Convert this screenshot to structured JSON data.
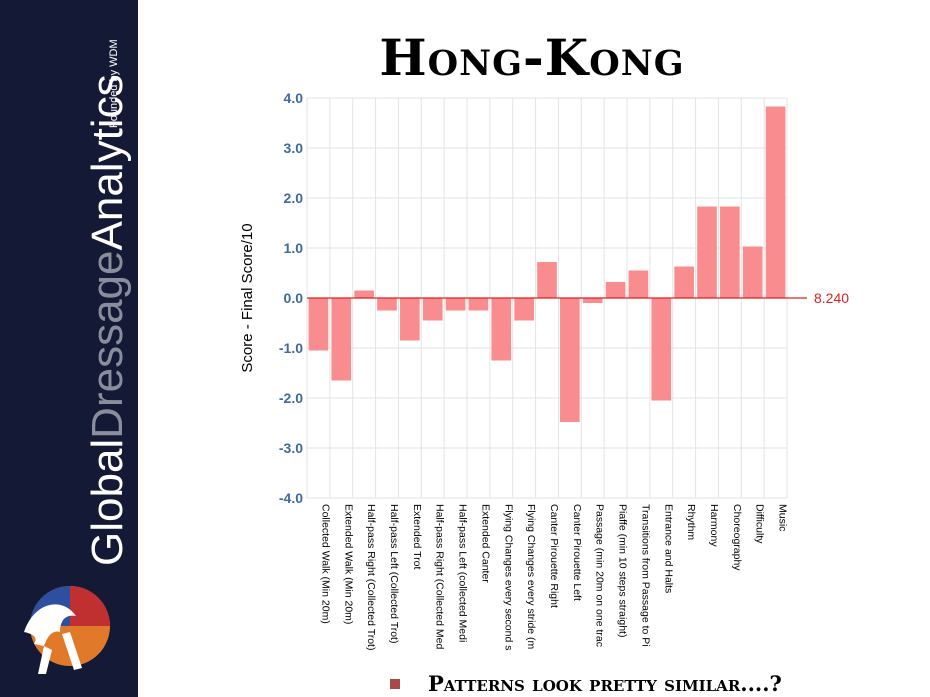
{
  "sidebar": {
    "brand_part1": "Global",
    "brand_part2": "Dressage",
    "brand_part3": "Analytics",
    "founded": "Founded by WDM"
  },
  "slide_title": "Hong-Kong",
  "footer_text": "Patterns look pretty similar....?",
  "colors": {
    "bar": "#f98c8f",
    "reference": "#e02020",
    "axis_text": "#3e6a9b",
    "sidebar": "#141a35"
  },
  "chart_data": {
    "type": "bar",
    "ylabel": "Score - Final Score/10",
    "ylim": [
      -4,
      4
    ],
    "yticks": [
      "4.0",
      "3.0",
      "2.0",
      "1.0",
      "0.0",
      "-1.0",
      "-2.0",
      "-3.0",
      "-4.0"
    ],
    "reference_label": "8.240",
    "grid": true,
    "categories": [
      "Collected Walk (Min 20m)",
      "Extended Walk (Min 20m)",
      "Half-pass Right (Collected Trot)",
      "Half-pass Left (Collected Trot)",
      "Extended Trot",
      "Half-pass Right (Collected Med",
      "Half-pass Left (collected Medi",
      "Extended Canter",
      "Flying Changes every second s",
      "Flying Changes every stride (m",
      "Canter Pirouette Right",
      "Canter Pirouette Left",
      "Passage (min 20m on one trac",
      "Piaffe (min 10 steps straight)",
      "Transitions from Passage to Pi",
      "Entrance and Halts",
      "Rhythm",
      "Harmony",
      "Choreography",
      "Difficulty",
      "Music"
    ],
    "values": [
      -1.05,
      -1.65,
      0.15,
      -0.25,
      -0.85,
      -0.45,
      -0.25,
      -0.25,
      -1.25,
      -0.45,
      0.72,
      -2.48,
      -0.1,
      0.32,
      0.55,
      -2.05,
      0.63,
      1.83,
      1.83,
      1.03,
      3.83
    ]
  }
}
